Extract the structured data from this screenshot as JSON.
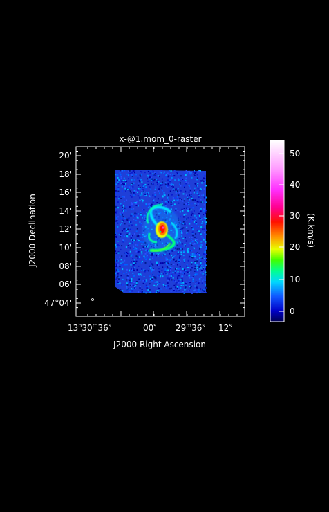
{
  "title": "x-@1.mom_0-raster",
  "y_axis": {
    "label": "J2000 Declination",
    "ticks": [
      "20'",
      "18'",
      "16'",
      "14'",
      "12'",
      "10'",
      "08'",
      "06'",
      "47°04'"
    ]
  },
  "x_axis": {
    "label": "J2000 Right Ascension",
    "ticks": [
      {
        "parts": [
          "13",
          "h",
          "30",
          "m",
          "36",
          "s"
        ]
      },
      {
        "parts": [
          "00",
          "s"
        ]
      },
      {
        "parts": [
          "29",
          "m",
          "36",
          "s"
        ]
      },
      {
        "parts": [
          "12",
          "s"
        ]
      }
    ]
  },
  "colorbar": {
    "unit_label": "(K.km/s)",
    "ticks": [
      "50",
      "40",
      "30",
      "20",
      "10",
      "0"
    ],
    "range": [
      -3,
      53
    ]
  },
  "colors": {
    "background": "#000000",
    "frame": "#ffffff",
    "noise_blue": "#1f3fd8"
  }
}
